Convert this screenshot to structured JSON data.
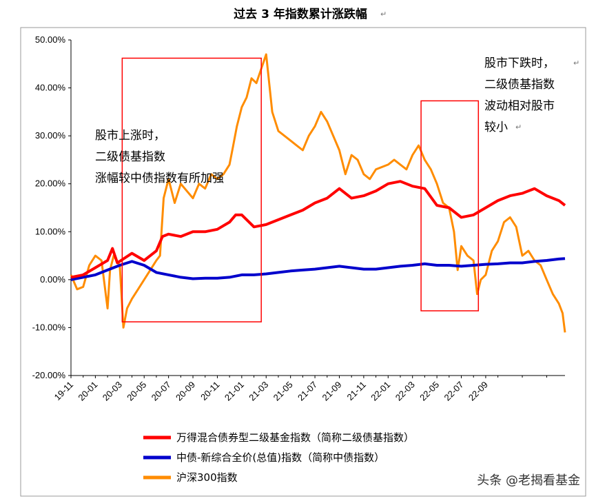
{
  "chart_data": {
    "type": "line",
    "title": "过去 3 年指数累计涨跌幅",
    "xlabel": "",
    "ylabel": "",
    "ylim": [
      -0.2,
      0.5
    ],
    "y_ticks": [
      "50.00%",
      "40.00%",
      "30.00%",
      "20.00%",
      "10.00%",
      "0.00%",
      "-10.00%",
      "-20.00%"
    ],
    "x_ticks": [
      "19-11",
      "20-01",
      "20-03",
      "20-05",
      "20-07",
      "20-09",
      "20-11",
      "21-01",
      "21-03",
      "21-05",
      "21-07",
      "21-09",
      "21-11",
      "22-01",
      "22-03",
      "22-05",
      "22-07",
      "22-09"
    ],
    "grid": false,
    "legend_position": "bottom",
    "x_unit": "months since 2019-11",
    "series": [
      {
        "name": "万得混合债券型二级基金指数（简称二级债基指数）",
        "color": "#ff0000",
        "points": [
          [
            0,
            0.005
          ],
          [
            1,
            0.01
          ],
          [
            2,
            0.025
          ],
          [
            3,
            0.04
          ],
          [
            3.4,
            0.065
          ],
          [
            3.8,
            0.035
          ],
          [
            5,
            0.055
          ],
          [
            6,
            0.04
          ],
          [
            7,
            0.06
          ],
          [
            7.5,
            0.09
          ],
          [
            8,
            0.095
          ],
          [
            9,
            0.09
          ],
          [
            10,
            0.1
          ],
          [
            11,
            0.1
          ],
          [
            12,
            0.105
          ],
          [
            13,
            0.12
          ],
          [
            13.5,
            0.135
          ],
          [
            14,
            0.135
          ],
          [
            15,
            0.11
          ],
          [
            16,
            0.115
          ],
          [
            17,
            0.125
          ],
          [
            18,
            0.135
          ],
          [
            19,
            0.145
          ],
          [
            20,
            0.16
          ],
          [
            21,
            0.17
          ],
          [
            22,
            0.19
          ],
          [
            23,
            0.17
          ],
          [
            24,
            0.175
          ],
          [
            25,
            0.185
          ],
          [
            26,
            0.2
          ],
          [
            27,
            0.205
          ],
          [
            28,
            0.195
          ],
          [
            29,
            0.19
          ],
          [
            30,
            0.155
          ],
          [
            31,
            0.15
          ],
          [
            32,
            0.13
          ],
          [
            33,
            0.135
          ],
          [
            34,
            0.15
          ],
          [
            35,
            0.165
          ],
          [
            36,
            0.175
          ],
          [
            37,
            0.18
          ],
          [
            38,
            0.19
          ],
          [
            39,
            0.175
          ],
          [
            40,
            0.165
          ],
          [
            40.5,
            0.155
          ]
        ]
      },
      {
        "name": "中债-新综合全价(总值)指数（简称中债指数）",
        "color": "#0000cc",
        "points": [
          [
            0,
            0.0
          ],
          [
            1,
            0.005
          ],
          [
            2,
            0.01
          ],
          [
            3,
            0.02
          ],
          [
            4,
            0.03
          ],
          [
            5,
            0.038
          ],
          [
            6,
            0.03
          ],
          [
            7,
            0.015
          ],
          [
            8,
            0.01
          ],
          [
            9,
            0.005
          ],
          [
            10,
            0.002
          ],
          [
            11,
            0.003
          ],
          [
            12,
            0.003
          ],
          [
            13,
            0.005
          ],
          [
            14,
            0.01
          ],
          [
            15,
            0.01
          ],
          [
            16,
            0.012
          ],
          [
            17,
            0.015
          ],
          [
            18,
            0.018
          ],
          [
            19,
            0.02
          ],
          [
            20,
            0.022
          ],
          [
            21,
            0.025
          ],
          [
            22,
            0.028
          ],
          [
            23,
            0.025
          ],
          [
            24,
            0.022
          ],
          [
            25,
            0.022
          ],
          [
            26,
            0.025
          ],
          [
            27,
            0.028
          ],
          [
            28,
            0.03
          ],
          [
            29,
            0.033
          ],
          [
            30,
            0.03
          ],
          [
            31,
            0.03
          ],
          [
            32,
            0.028
          ],
          [
            33,
            0.03
          ],
          [
            34,
            0.032
          ],
          [
            35,
            0.033
          ],
          [
            36,
            0.035
          ],
          [
            37,
            0.035
          ],
          [
            38,
            0.038
          ],
          [
            39,
            0.04
          ],
          [
            40,
            0.043
          ],
          [
            40.5,
            0.044
          ]
        ]
      },
      {
        "name": "沪深300指数",
        "color": "#ff8c00",
        "points": [
          [
            0,
            0.01
          ],
          [
            0.5,
            -0.02
          ],
          [
            1,
            -0.015
          ],
          [
            1.5,
            0.03
          ],
          [
            2,
            0.05
          ],
          [
            2.5,
            0.04
          ],
          [
            3,
            -0.06
          ],
          [
            3.2,
            0.02
          ],
          [
            3.5,
            0.05
          ],
          [
            4,
            0.03
          ],
          [
            4.3,
            -0.1
          ],
          [
            4.6,
            -0.06
          ],
          [
            5,
            -0.04
          ],
          [
            5.5,
            -0.02
          ],
          [
            6,
            0.0
          ],
          [
            6.5,
            0.02
          ],
          [
            7,
            0.04
          ],
          [
            7.3,
            0.05
          ],
          [
            7.6,
            0.17
          ],
          [
            8,
            0.21
          ],
          [
            8.5,
            0.16
          ],
          [
            9,
            0.2
          ],
          [
            10,
            0.17
          ],
          [
            10.5,
            0.2
          ],
          [
            11,
            0.19
          ],
          [
            11.5,
            0.22
          ],
          [
            12,
            0.21
          ],
          [
            12.5,
            0.22
          ],
          [
            13,
            0.24
          ],
          [
            13.3,
            0.28
          ],
          [
            13.6,
            0.32
          ],
          [
            14,
            0.36
          ],
          [
            14.4,
            0.38
          ],
          [
            14.8,
            0.42
          ],
          [
            15.2,
            0.41
          ],
          [
            15.6,
            0.44
          ],
          [
            16,
            0.47
          ],
          [
            16.5,
            0.35
          ],
          [
            17,
            0.31
          ],
          [
            17.5,
            0.3
          ],
          [
            18,
            0.29
          ],
          [
            18.5,
            0.28
          ],
          [
            19,
            0.27
          ],
          [
            19.5,
            0.3
          ],
          [
            20,
            0.32
          ],
          [
            20.5,
            0.35
          ],
          [
            21,
            0.33
          ],
          [
            21.5,
            0.3
          ],
          [
            22,
            0.27
          ],
          [
            22.5,
            0.22
          ],
          [
            23,
            0.26
          ],
          [
            23.5,
            0.25
          ],
          [
            24,
            0.22
          ],
          [
            24.5,
            0.21
          ],
          [
            25,
            0.23
          ],
          [
            26,
            0.24
          ],
          [
            26.5,
            0.25
          ],
          [
            27,
            0.24
          ],
          [
            27.5,
            0.23
          ],
          [
            28,
            0.26
          ],
          [
            28.5,
            0.28
          ],
          [
            29,
            0.25
          ],
          [
            29.5,
            0.23
          ],
          [
            30,
            0.2
          ],
          [
            30.5,
            0.16
          ],
          [
            31,
            0.15
          ],
          [
            31.4,
            0.1
          ],
          [
            31.7,
            0.02
          ],
          [
            32,
            0.07
          ],
          [
            32.5,
            0.05
          ],
          [
            33,
            0.04
          ],
          [
            33.3,
            -0.03
          ],
          [
            33.6,
            0.0
          ],
          [
            34,
            0.01
          ],
          [
            34.5,
            0.06
          ],
          [
            35,
            0.08
          ],
          [
            35.5,
            0.12
          ],
          [
            36,
            0.13
          ],
          [
            36.5,
            0.11
          ],
          [
            37,
            0.05
          ],
          [
            37.5,
            0.06
          ],
          [
            38,
            0.04
          ],
          [
            38.5,
            0.03
          ],
          [
            39,
            0.0
          ],
          [
            39.5,
            -0.03
          ],
          [
            40,
            -0.05
          ],
          [
            40.3,
            -0.07
          ],
          [
            40.5,
            -0.11
          ]
        ]
      }
    ]
  },
  "annotations": [
    {
      "lines": [
        "股市上涨时，",
        "二级债基指数",
        "涨幅较中债指数有所加强"
      ],
      "box_x_range": [
        4.2,
        15.6
      ],
      "box_y_range": [
        -0.088,
        0.462
      ]
    },
    {
      "lines": [
        "股市下跌时，",
        "二级债基指数",
        "波动相对股市",
        "较小"
      ],
      "box_x_range": [
        28.7,
        33.4
      ],
      "box_y_range": [
        -0.065,
        0.373
      ]
    }
  ],
  "watermark": "头条 @老揭看基金",
  "paragraph_mark": "↵",
  "colors": {
    "box": "#ff0000",
    "axis": "#000000",
    "frame": "#999999"
  }
}
